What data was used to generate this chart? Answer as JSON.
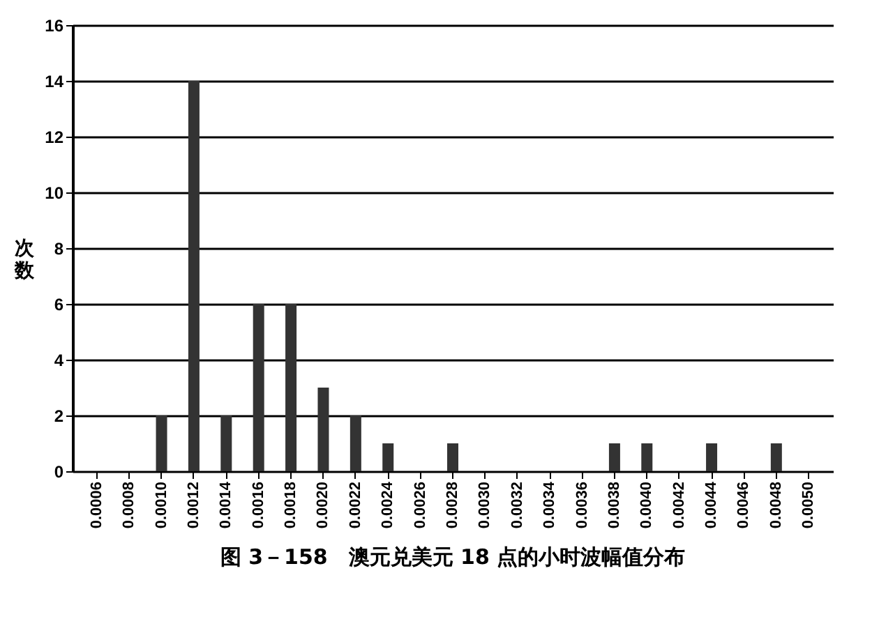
{
  "chart_data": {
    "type": "bar",
    "title": "图 3－158　澳元兑美元 18 点的小时波幅值分布",
    "ylabel": "次数",
    "categories": [
      "0.0006",
      "0.0008",
      "0.0010",
      "0.0012",
      "0.0014",
      "0.0016",
      "0.0018",
      "0.0020",
      "0.0022",
      "0.0024",
      "0.0026",
      "0.0028",
      "0.0030",
      "0.0032",
      "0.0034",
      "0.0036",
      "0.0038",
      "0.0040",
      "0.0042",
      "0.0044",
      "0.0046",
      "0.0048",
      "0.0050"
    ],
    "values": [
      0,
      0,
      2,
      14,
      2,
      6,
      6,
      3,
      2,
      1,
      0,
      1,
      0,
      0,
      0,
      0,
      1,
      1,
      0,
      1,
      0,
      1,
      0
    ],
    "color": "#333333",
    "ylim": [
      0,
      16
    ],
    "yticks": [
      0,
      2,
      4,
      6,
      8,
      10,
      12,
      14,
      16
    ],
    "grid": true
  }
}
